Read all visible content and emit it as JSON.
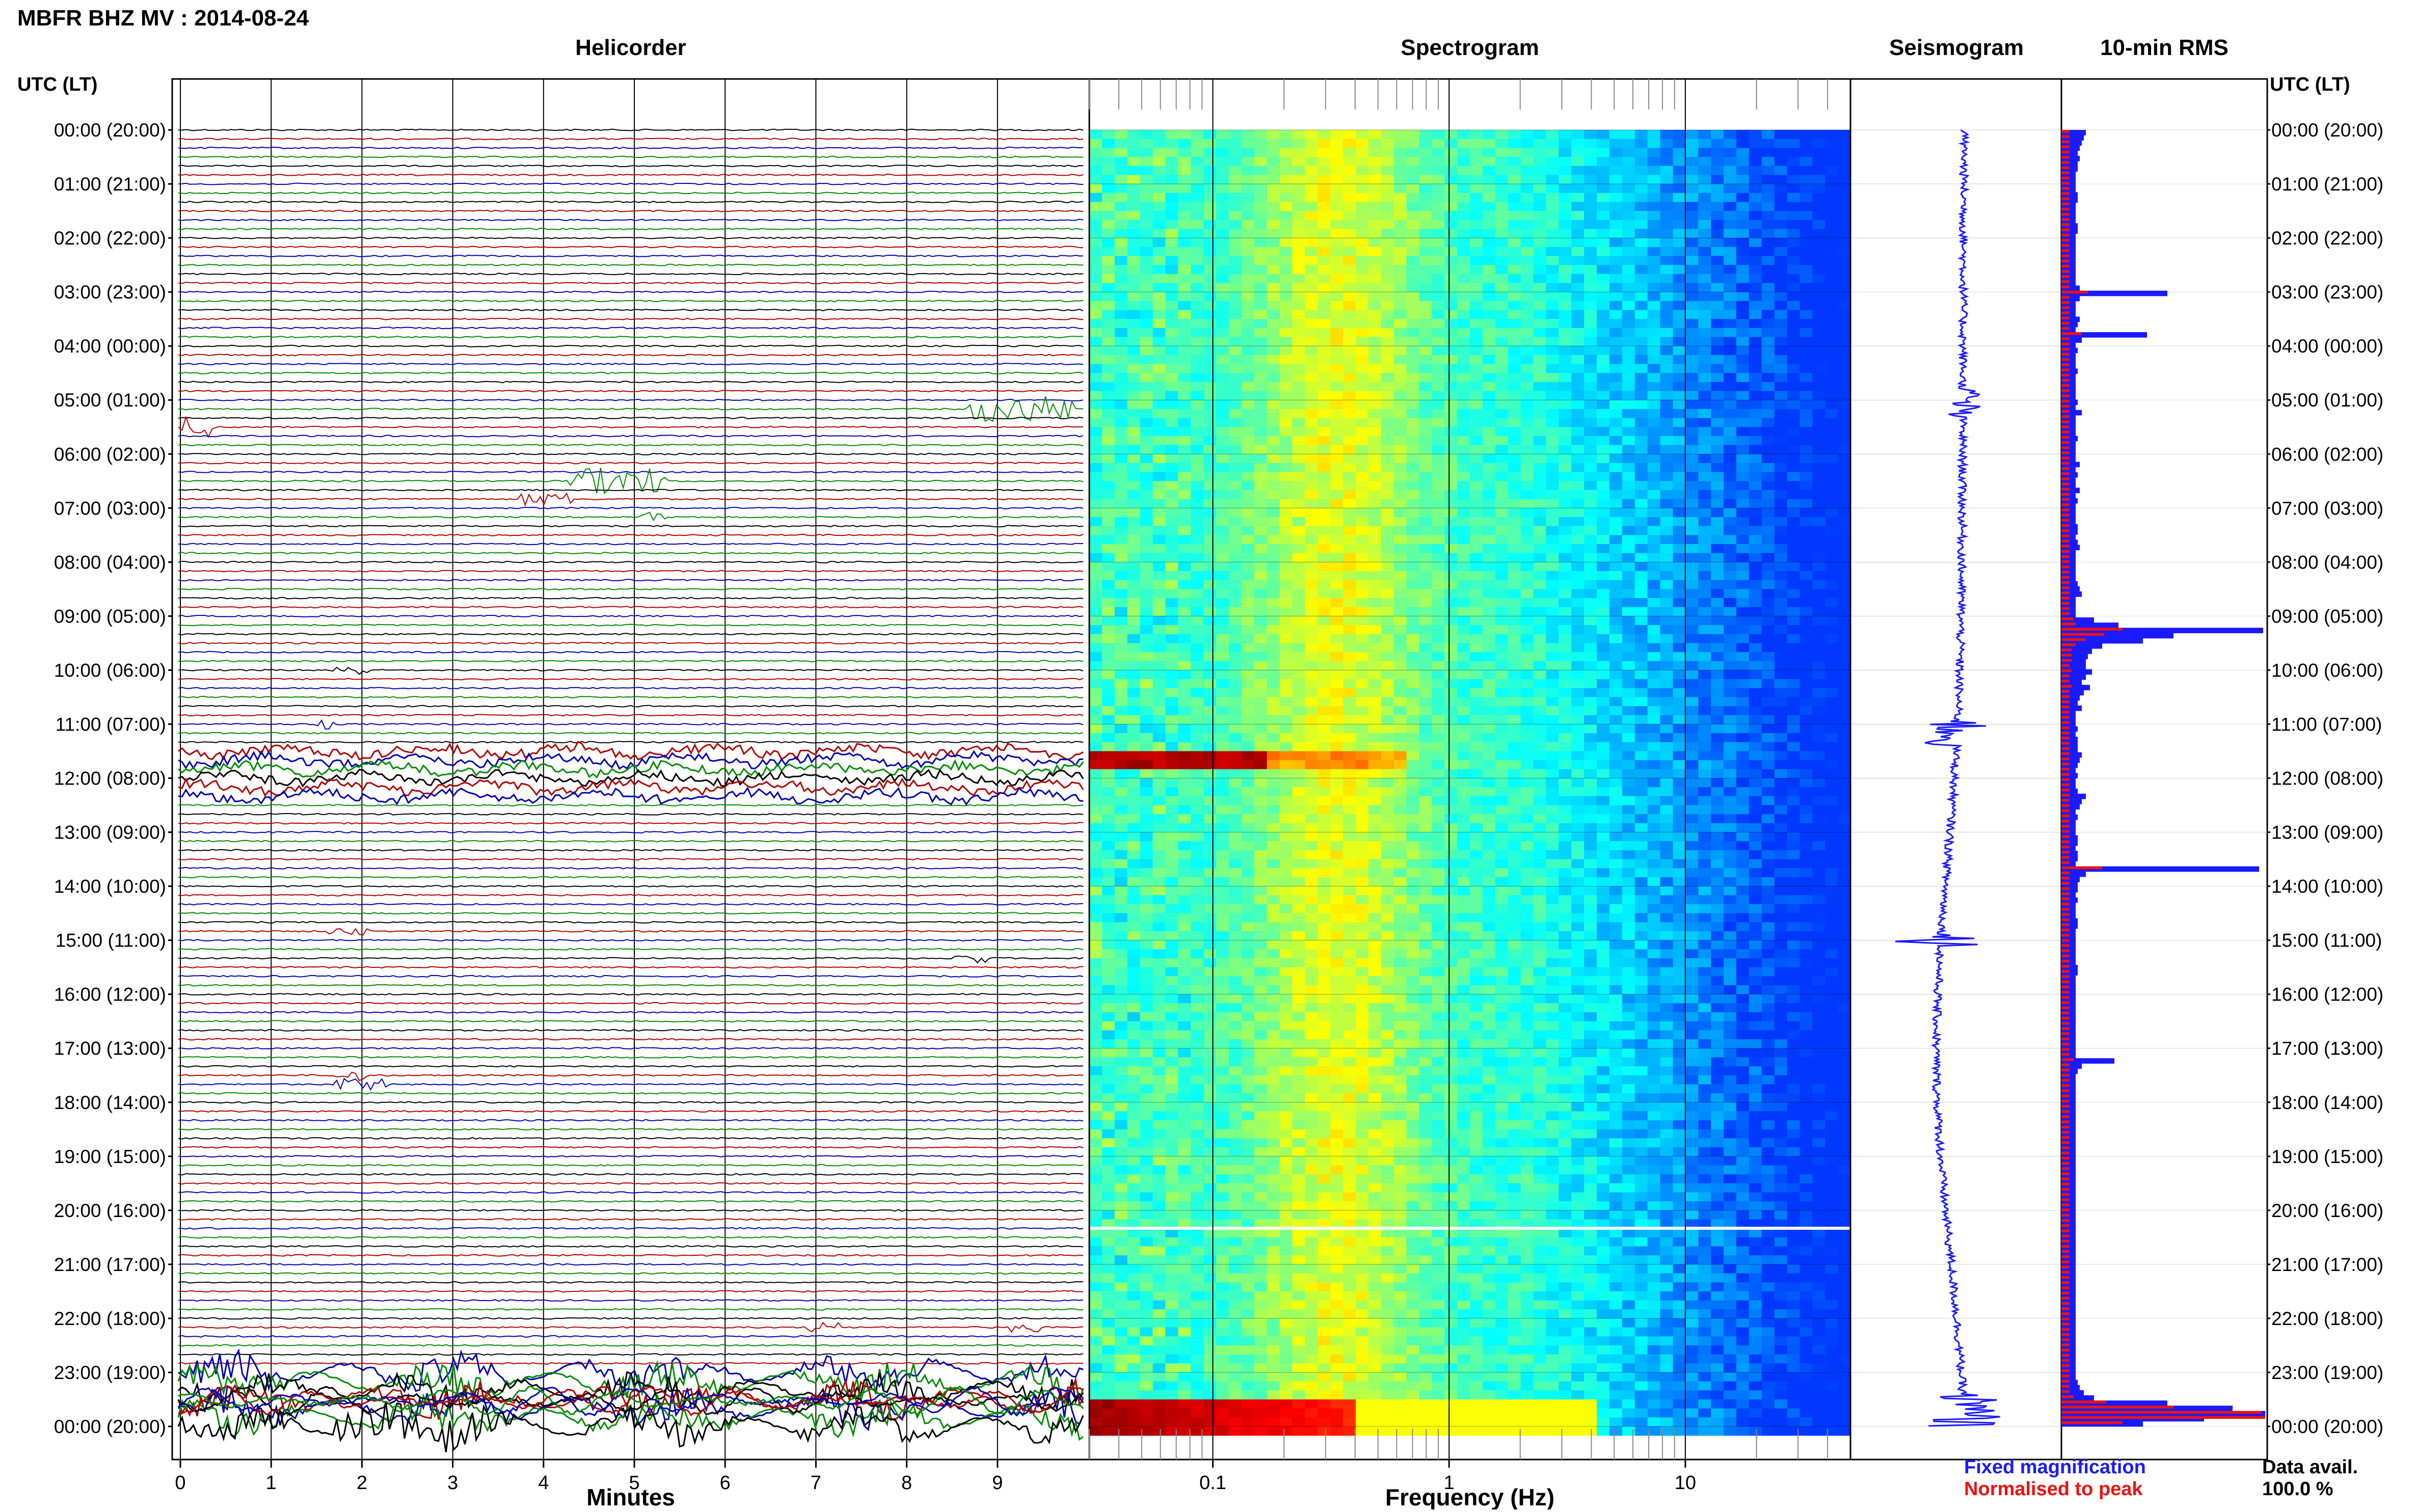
{
  "header": {
    "title": "MBFR BHZ MV : 2014-08-24",
    "utc_label": "UTC (LT)"
  },
  "panels": {
    "helicorder": "Helicorder",
    "spectrogram": "Spectrogram",
    "seismogram": "Seismogram",
    "rms": "10-min RMS"
  },
  "axes": {
    "helicorder_xlabel": "Minutes",
    "spectrogram_xlabel": "Frequency (Hz)"
  },
  "legend": {
    "fixed": "Fixed magnification",
    "normalised": "Normalised to peak",
    "fixed_color": "#1a1aff",
    "normalised_color": "#ee1111"
  },
  "data_avail": {
    "label": "Data avail.",
    "value": "100.0 %"
  },
  "chart_data": {
    "type": "heatmap",
    "time_labels": [
      "00:00 (20:00)",
      "01:00 (21:00)",
      "02:00 (22:00)",
      "03:00 (23:00)",
      "04:00 (00:00)",
      "05:00 (01:00)",
      "06:00 (02:00)",
      "07:00 (03:00)",
      "08:00 (04:00)",
      "09:00 (05:00)",
      "10:00 (06:00)",
      "11:00 (07:00)",
      "12:00 (08:00)",
      "13:00 (09:00)",
      "14:00 (10:00)",
      "15:00 (11:00)",
      "16:00 (12:00)",
      "17:00 (13:00)",
      "18:00 (14:00)",
      "19:00 (15:00)",
      "20:00 (16:00)",
      "21:00 (17:00)",
      "22:00 (18:00)",
      "23:00 (19:00)",
      "00:00 (20:00)"
    ],
    "minute_ticks": [
      "0",
      "1",
      "2",
      "3",
      "4",
      "5",
      "6",
      "7",
      "8",
      "9"
    ],
    "freq_ticks": [
      {
        "value": 0.1,
        "label": "0.1"
      },
      {
        "value": 1,
        "label": "1"
      },
      {
        "value": 10,
        "label": "10"
      }
    ],
    "freq_range": [
      0.03,
      50
    ],
    "trace_colors": [
      "#000000",
      "#b00000",
      "#0000b4",
      "#008c00"
    ],
    "rms": {
      "fixed": [
        0.12,
        0.11,
        0.1,
        0.09,
        0.08,
        0.09,
        0.08,
        0.08,
        0.07,
        0.07,
        0.07,
        0.07,
        0.08,
        0.08,
        0.07,
        0.07,
        0.07,
        0.07,
        0.08,
        0.08,
        0.07,
        0.07,
        0.07,
        0.07,
        0.07,
        0.07,
        0.07,
        0.07,
        0.07,
        0.07,
        0.09,
        0.52,
        0.09,
        0.07,
        0.07,
        0.07,
        0.09,
        0.08,
        0.07,
        0.42,
        0.1,
        0.07,
        0.08,
        0.07,
        0.07,
        0.07,
        0.08,
        0.07,
        0.07,
        0.07,
        0.07,
        0.07,
        0.08,
        0.07,
        0.1,
        0.07,
        0.07,
        0.07,
        0.07,
        0.08,
        0.07,
        0.07,
        0.07,
        0.07,
        0.09,
        0.07,
        0.08,
        0.07,
        0.07,
        0.09,
        0.07,
        0.08,
        0.07,
        0.07,
        0.07,
        0.07,
        0.08,
        0.08,
        0.07,
        0.08,
        0.09,
        0.07,
        0.07,
        0.07,
        0.07,
        0.07,
        0.07,
        0.08,
        0.09,
        0.1,
        0.07,
        0.07,
        0.07,
        0.07,
        0.16,
        0.28,
        0.99,
        0.55,
        0.4,
        0.2,
        0.15,
        0.13,
        0.12,
        0.12,
        0.15,
        0.12,
        0.1,
        0.14,
        0.11,
        0.09,
        0.08,
        0.1,
        0.07,
        0.07,
        0.07,
        0.08,
        0.07,
        0.08,
        0.08,
        0.08,
        0.1,
        0.09,
        0.08,
        0.07,
        0.08,
        0.07,
        0.07,
        0.08,
        0.12,
        0.1,
        0.09,
        0.07,
        0.08,
        0.07,
        0.07,
        0.07,
        0.08,
        0.08,
        0.07,
        0.08,
        0.08,
        0.07,
        0.97,
        0.12,
        0.09,
        0.08,
        0.08,
        0.07,
        0.08,
        0.07,
        0.07,
        0.07,
        0.08,
        0.08,
        0.07,
        0.07,
        0.07,
        0.07,
        0.07,
        0.07,
        0.07,
        0.08,
        0.08,
        0.07,
        0.07,
        0.07,
        0.07,
        0.07,
        0.07,
        0.07,
        0.07,
        0.07,
        0.07,
        0.07,
        0.07,
        0.07,
        0.07,
        0.07,
        0.07,
        0.26,
        0.1,
        0.08,
        0.07,
        0.07,
        0.07,
        0.07,
        0.07,
        0.07,
        0.07,
        0.07,
        0.07,
        0.07,
        0.07,
        0.07,
        0.07,
        0.07,
        0.07,
        0.07,
        0.07,
        0.07,
        0.07,
        0.07,
        0.07,
        0.07,
        0.07,
        0.07,
        0.07,
        0.07,
        0.07,
        0.07,
        0.07,
        0.07,
        0.07,
        0.07,
        0.07,
        0.07,
        0.07,
        0.07,
        0.07,
        0.07,
        0.07,
        0.07,
        0.07,
        0.07,
        0.07,
        0.07,
        0.07,
        0.07,
        0.07,
        0.07,
        0.07,
        0.07,
        0.07,
        0.07,
        0.07,
        0.07,
        0.07,
        0.07,
        0.07,
        0.07,
        0.07,
        0.08,
        0.09,
        0.11,
        0.16,
        0.52,
        0.84,
        1.0,
        0.7,
        0.4
      ],
      "normalised": [
        0.04,
        0.04,
        0.04,
        0.04,
        0.04,
        0.04,
        0.04,
        0.04,
        0.04,
        0.04,
        0.04,
        0.04,
        0.04,
        0.04,
        0.04,
        0.04,
        0.04,
        0.04,
        0.04,
        0.04,
        0.04,
        0.04,
        0.04,
        0.04,
        0.04,
        0.04,
        0.04,
        0.04,
        0.04,
        0.04,
        0.04,
        0.13,
        0.04,
        0.04,
        0.04,
        0.04,
        0.04,
        0.04,
        0.04,
        0.1,
        0.04,
        0.04,
        0.04,
        0.04,
        0.04,
        0.04,
        0.04,
        0.04,
        0.04,
        0.04,
        0.04,
        0.04,
        0.04,
        0.04,
        0.04,
        0.04,
        0.04,
        0.04,
        0.04,
        0.04,
        0.04,
        0.04,
        0.04,
        0.04,
        0.04,
        0.04,
        0.04,
        0.04,
        0.04,
        0.04,
        0.04,
        0.04,
        0.04,
        0.04,
        0.04,
        0.04,
        0.04,
        0.04,
        0.04,
        0.04,
        0.04,
        0.04,
        0.04,
        0.04,
        0.04,
        0.04,
        0.04,
        0.04,
        0.04,
        0.04,
        0.04,
        0.04,
        0.04,
        0.04,
        0.06,
        0.07,
        0.3,
        0.21,
        0.12,
        0.07,
        0.05,
        0.05,
        0.05,
        0.04,
        0.05,
        0.04,
        0.04,
        0.05,
        0.04,
        0.04,
        0.04,
        0.04,
        0.04,
        0.04,
        0.04,
        0.04,
        0.04,
        0.04,
        0.04,
        0.04,
        0.04,
        0.04,
        0.04,
        0.04,
        0.04,
        0.04,
        0.04,
        0.04,
        0.04,
        0.04,
        0.04,
        0.04,
        0.04,
        0.04,
        0.04,
        0.04,
        0.04,
        0.04,
        0.04,
        0.04,
        0.04,
        0.04,
        0.2,
        0.04,
        0.04,
        0.04,
        0.04,
        0.04,
        0.04,
        0.04,
        0.04,
        0.04,
        0.04,
        0.04,
        0.04,
        0.04,
        0.04,
        0.04,
        0.04,
        0.04,
        0.04,
        0.04,
        0.04,
        0.04,
        0.04,
        0.04,
        0.04,
        0.04,
        0.04,
        0.04,
        0.04,
        0.04,
        0.04,
        0.04,
        0.04,
        0.04,
        0.04,
        0.04,
        0.04,
        0.06,
        0.04,
        0.04,
        0.04,
        0.04,
        0.04,
        0.04,
        0.04,
        0.04,
        0.04,
        0.04,
        0.04,
        0.04,
        0.04,
        0.04,
        0.04,
        0.04,
        0.04,
        0.04,
        0.04,
        0.04,
        0.04,
        0.04,
        0.04,
        0.04,
        0.04,
        0.04,
        0.04,
        0.04,
        0.04,
        0.04,
        0.04,
        0.04,
        0.04,
        0.04,
        0.04,
        0.04,
        0.04,
        0.04,
        0.04,
        0.04,
        0.04,
        0.04,
        0.04,
        0.04,
        0.04,
        0.04,
        0.04,
        0.04,
        0.04,
        0.04,
        0.04,
        0.04,
        0.04,
        0.04,
        0.04,
        0.04,
        0.04,
        0.04,
        0.04,
        0.04,
        0.04,
        0.04,
        0.04,
        0.04,
        0.06,
        0.22,
        0.55,
        0.98,
        1.0,
        0.3
      ]
    }
  }
}
